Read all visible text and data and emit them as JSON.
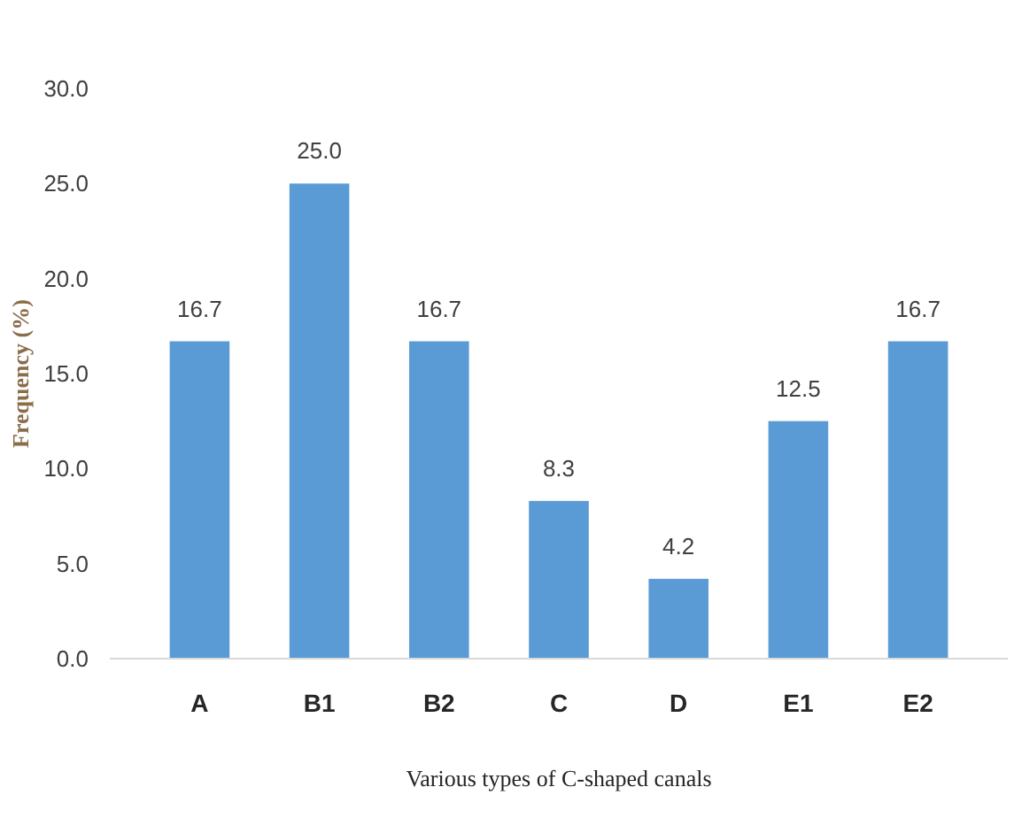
{
  "chart_data": {
    "type": "bar",
    "xlabel": "Various types of C-shaped canals",
    "ylabel": "Frequency (%)",
    "categories": [
      "A",
      "B1",
      "B2",
      "C",
      "D",
      "E1",
      "E2"
    ],
    "values": [
      16.7,
      25.0,
      16.7,
      8.3,
      4.2,
      12.5,
      16.7
    ],
    "color": "#5b9bd5",
    "ylim": [
      0,
      30
    ],
    "yticks": [
      {
        "value": 0,
        "label": "0.0"
      },
      {
        "value": 5,
        "label": "5.0"
      },
      {
        "value": 10,
        "label": "10.0"
      },
      {
        "value": 15,
        "label": "15.0"
      },
      {
        "value": 20,
        "label": "20.0"
      },
      {
        "value": 25,
        "label": "25.0"
      },
      {
        "value": 30,
        "label": "30.0"
      }
    ],
    "value_labels": [
      "16.7",
      "25.0",
      "16.7",
      "8.3",
      "4.2",
      "12.5",
      "16.7"
    ],
    "grid": false
  }
}
